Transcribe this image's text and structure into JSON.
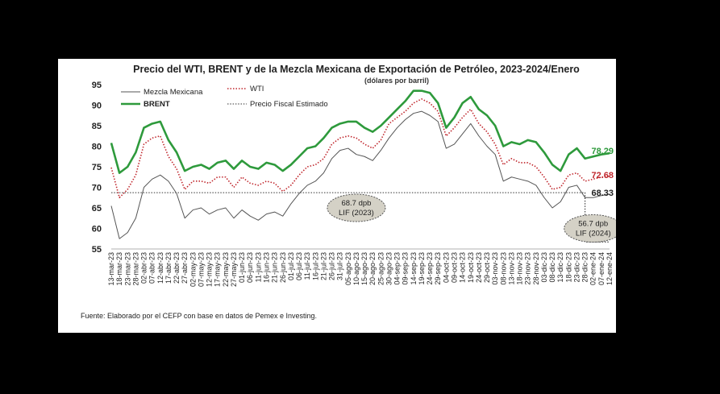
{
  "chart_data": {
    "type": "line",
    "title": "Precio del WTI, BRENT y de la Mezcla Mexicana de Exportación de Petróleo, 2023-2024/Enero",
    "subtitle": "(dólares por barril)",
    "source": "Fuente: Elaborado por el CEFP con base en datos de Pemex e Investing.",
    "ylim": [
      55,
      95
    ],
    "yticks": [
      55,
      60,
      65,
      70,
      75,
      80,
      85,
      90,
      95
    ],
    "grid": false,
    "legend_position": "top-left",
    "categories": [
      "13-mar-23",
      "18-mar-23",
      "23-mar-23",
      "28-mar-23",
      "02-abr-23",
      "07-abr-23",
      "12-abr-23",
      "17-abr-23",
      "22-abr-23",
      "27-abr-23",
      "02-may-23",
      "07-may-23",
      "12-may-23",
      "17-may-23",
      "22-may-23",
      "27-may-23",
      "01-jun-23",
      "06-jun-23",
      "11-jun-23",
      "16-jun-23",
      "21-jun-23",
      "26-jun-23",
      "01-jul-23",
      "06-jul-23",
      "11-jul-23",
      "16-jul-23",
      "21-jul-23",
      "26-jul-23",
      "31-jul-23",
      "05-ago-23",
      "10-ago-23",
      "15-ago-23",
      "20-ago-23",
      "25-ago-23",
      "30-ago-23",
      "04-sep-23",
      "09-sep-23",
      "14-sep-23",
      "19-sep-23",
      "24-sep-23",
      "29-sep-23",
      "04-oct-23",
      "09-oct-23",
      "14-oct-23",
      "19-oct-23",
      "24-oct-23",
      "29-oct-23",
      "03-nov-23",
      "08-nov-23",
      "13-nov-23",
      "18-nov-23",
      "23-nov-23",
      "28-nov-23",
      "03-dic-23",
      "08-dic-23",
      "13-dic-23",
      "18-dic-23",
      "23-dic-23",
      "28-dic-23",
      "02-ene-24",
      "07-ene-24",
      "12-ene-24"
    ],
    "series": [
      {
        "name": "BRENT",
        "color": "#2e9a3c",
        "style": "solid",
        "end_label": "78.29",
        "values": [
          80.8,
          73.5,
          75.0,
          78.5,
          84.5,
          85.5,
          86.0,
          81.5,
          78.5,
          74.0,
          75.0,
          75.5,
          74.5,
          76.0,
          76.5,
          74.5,
          76.5,
          75.0,
          74.5,
          76.0,
          75.5,
          74.0,
          75.5,
          77.5,
          79.5,
          80.0,
          82.0,
          84.5,
          85.5,
          86.0,
          86.0,
          84.5,
          83.5,
          85.0,
          87.0,
          89.0,
          91.0,
          93.5,
          93.5,
          93.0,
          90.5,
          84.5,
          87.0,
          90.5,
          92.0,
          89.0,
          87.5,
          85.0,
          80.0,
          81.0,
          80.5,
          81.5,
          81.0,
          78.5,
          75.5,
          74.0,
          78.0,
          79.5,
          77.0,
          77.5,
          78.0,
          78.29
        ]
      },
      {
        "name": "WTI",
        "color": "#c0272d",
        "style": "dotted",
        "end_label": "72.68",
        "values": [
          74.8,
          67.5,
          69.5,
          73.0,
          80.5,
          82.0,
          82.5,
          77.5,
          74.5,
          69.5,
          71.5,
          71.5,
          71.0,
          72.5,
          72.5,
          70.0,
          72.5,
          71.0,
          70.5,
          71.5,
          71.0,
          69.0,
          70.5,
          73.0,
          75.0,
          75.5,
          77.0,
          80.5,
          82.0,
          82.5,
          82.0,
          80.5,
          79.5,
          81.5,
          85.5,
          87.0,
          88.5,
          90.5,
          91.5,
          90.5,
          88.5,
          82.5,
          84.5,
          87.0,
          89.0,
          85.5,
          83.5,
          80.5,
          75.5,
          77.0,
          76.0,
          76.0,
          75.0,
          72.5,
          69.5,
          70.0,
          73.0,
          73.5,
          71.5,
          72.0,
          72.5,
          72.68
        ]
      },
      {
        "name": "Mezcla Mexicana",
        "color": "#555555",
        "style": "solid",
        "end_label": "68.33",
        "values": [
          65.5,
          57.5,
          59.0,
          62.5,
          70.0,
          72.0,
          73.0,
          71.5,
          68.5,
          62.5,
          64.5,
          65.0,
          63.5,
          64.5,
          65.0,
          62.5,
          64.5,
          63.0,
          62.0,
          63.5,
          64.0,
          63.0,
          66.0,
          68.5,
          70.5,
          71.5,
          73.5,
          77.0,
          79.0,
          79.5,
          78.0,
          77.5,
          76.5,
          79.0,
          82.0,
          84.5,
          86.5,
          88.0,
          88.5,
          87.5,
          86.0,
          79.5,
          80.5,
          83.0,
          85.5,
          82.5,
          80.0,
          78.0,
          71.5,
          72.5,
          72.0,
          71.5,
          70.5,
          67.5,
          65.0,
          66.5,
          70.0,
          70.5,
          67.5,
          67.5,
          68.0,
          68.33
        ]
      },
      {
        "name": "Precio Fiscal Estimado",
        "color": "#333333",
        "style": "dotted",
        "values": [
          68.7,
          68.7,
          68.7,
          68.7,
          68.7,
          68.7,
          68.7,
          68.7,
          68.7,
          68.7,
          68.7,
          68.7,
          68.7,
          68.7,
          68.7,
          68.7,
          68.7,
          68.7,
          68.7,
          68.7,
          68.7,
          68.7,
          68.7,
          68.7,
          68.7,
          68.7,
          68.7,
          68.7,
          68.7,
          68.7,
          68.7,
          68.7,
          68.7,
          68.7,
          68.7,
          68.7,
          68.7,
          68.7,
          68.7,
          68.7,
          68.7,
          68.7,
          68.7,
          68.7,
          68.7,
          68.7,
          68.7,
          68.7,
          68.7,
          68.7,
          68.7,
          68.7,
          68.7,
          68.7,
          68.7,
          68.7,
          68.7,
          68.7,
          56.7,
          56.7,
          56.7,
          56.7
        ]
      }
    ],
    "annotations": [
      {
        "line1": "68.7 dpb",
        "line2": "LIF (2023)",
        "category_index": 30,
        "y": 65
      },
      {
        "line1": "56.7 dpb",
        "line2": "LIF (2024)",
        "category_index": 59,
        "y": 60
      }
    ]
  }
}
